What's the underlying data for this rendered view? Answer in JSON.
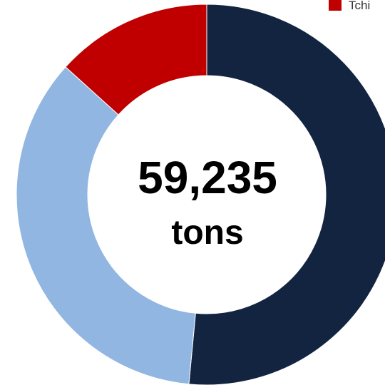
{
  "chart_data": {
    "type": "pie",
    "subtype": "donut",
    "slices": [
      {
        "value": 51.5,
        "color": "#12243f"
      },
      {
        "value": 35.2,
        "color": "#92b6e2"
      },
      {
        "value": 13.3,
        "color": "#c00000"
      }
    ],
    "center_value": "59,235",
    "center_unit": "tons",
    "legend": {
      "placement": "top-right",
      "entries": [
        {
          "label": "Tchi",
          "color": "#c00000"
        }
      ]
    }
  }
}
